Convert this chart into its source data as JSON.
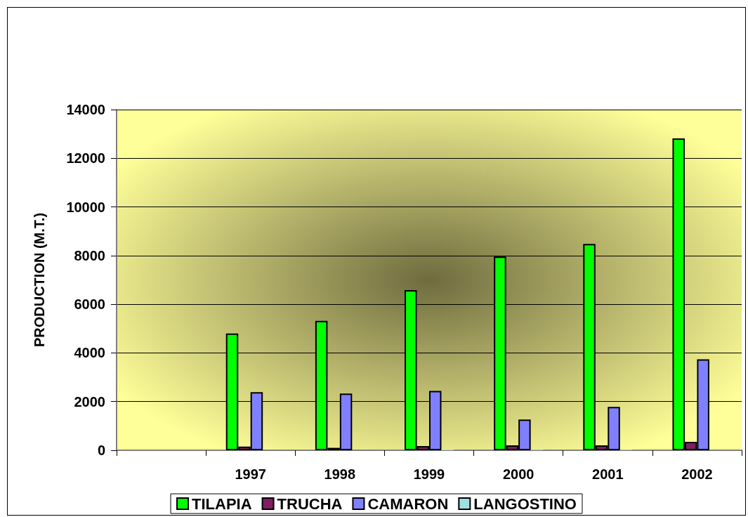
{
  "chart_data": {
    "type": "bar",
    "ylabel": "PRODUCTION (M.T.)",
    "categories": [
      null,
      "1997",
      "1998",
      "1999",
      "2000",
      "2001",
      "2002"
    ],
    "series": [
      {
        "name": "TILAPIA",
        "color": "#00ff00",
        "values": [
          null,
          4800,
          5320,
          6580,
          7960,
          8480,
          12820
        ]
      },
      {
        "name": "TRUCHA",
        "color": "#7f1f5f",
        "values": [
          null,
          150,
          100,
          170,
          200,
          200,
          350
        ]
      },
      {
        "name": "CAMARON",
        "color": "#8080ff",
        "values": [
          null,
          2390,
          2330,
          2440,
          1260,
          1780,
          3740
        ]
      },
      {
        "name": "LANGOSTINO",
        "color": "#a0e0e0",
        "values": [
          null,
          0,
          0,
          30,
          20,
          20,
          0
        ]
      }
    ],
    "ylim": [
      0,
      14000
    ],
    "yticks": [
      0,
      2000,
      4000,
      6000,
      8000,
      10000,
      12000,
      14000
    ],
    "grid": "y",
    "legend": "bottom"
  }
}
